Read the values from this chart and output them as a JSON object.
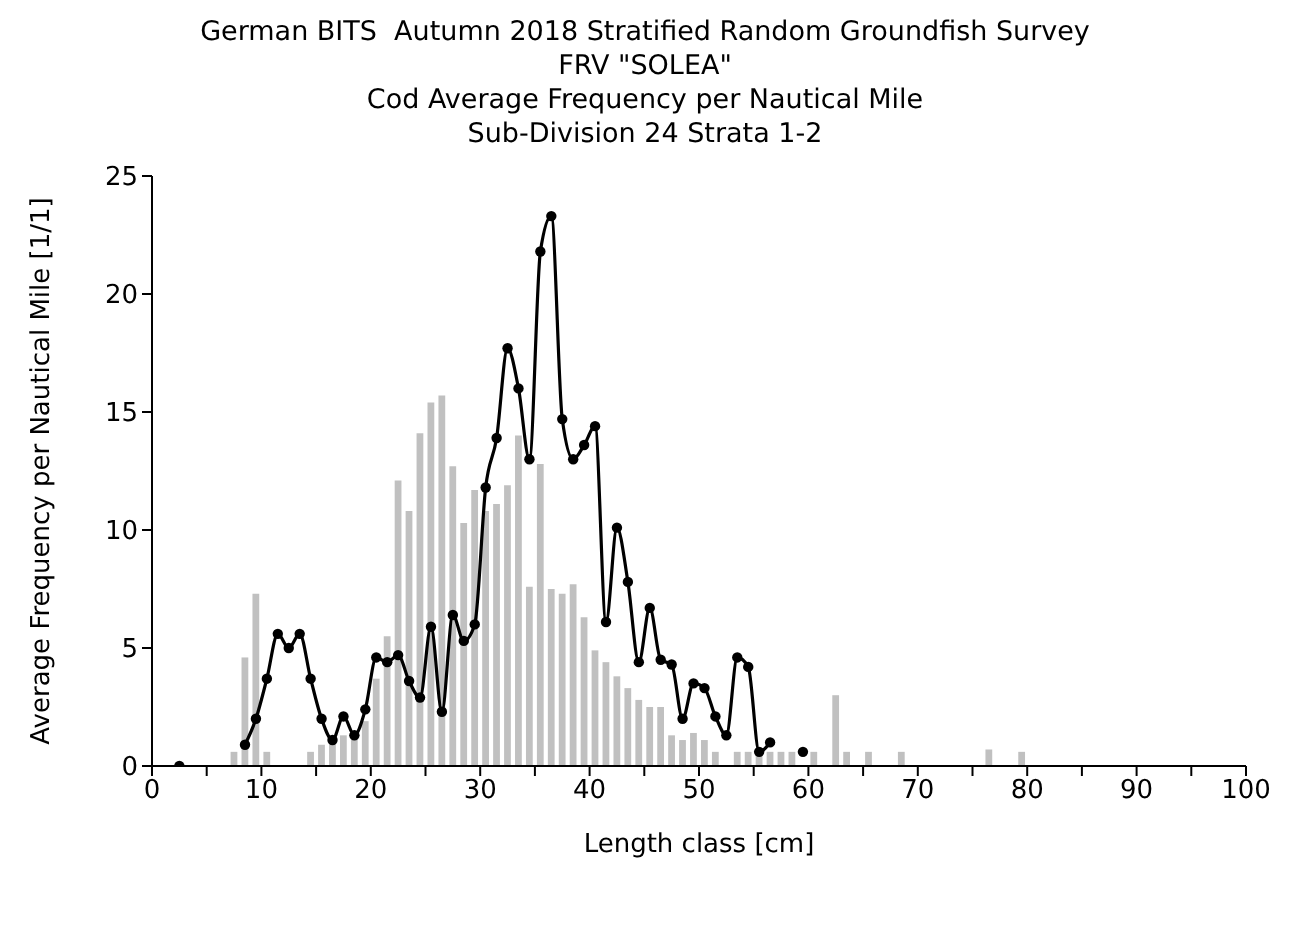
{
  "chart_data": {
    "type": "bar",
    "title": "German BITS  Autumn 2018 Stratified Random Groundfish Survey\nFRV \"SOLEA\"\nCod Average Frequency per Nautical Mile\nSub-Division 24 Strata 1-2",
    "xlabel": "Length class [cm]",
    "ylabel": "Average Frequency per Nautical Mile [1/1]",
    "xlim": [
      0,
      100
    ],
    "xticks": [
      0,
      {
        "value": 5,
        "label": null
      },
      10,
      {
        "value": 15,
        "label": null
      },
      20,
      {
        "value": 25,
        "label": null
      },
      30,
      {
        "value": 35,
        "label": null
      },
      40,
      {
        "value": 45,
        "label": null
      },
      50,
      {
        "value": 55,
        "label": null
      },
      60,
      {
        "value": 65,
        "label": null
      },
      70,
      {
        "value": 75,
        "label": null
      },
      80,
      {
        "value": 85,
        "label": null
      },
      90,
      {
        "value": 95,
        "label": null
      },
      100
    ],
    "ylim": [
      0,
      25
    ],
    "yticks": [
      0,
      5,
      10,
      15,
      20,
      25
    ],
    "marker": "circle",
    "line_style": "solid",
    "series": [
      {
        "color": "#c0c0c0",
        "x": [
          7.5,
          8.5,
          9.5,
          10.5,
          14.5,
          15.5,
          16.5,
          17.5,
          18.5,
          19.5,
          20.5,
          21.5,
          22.5,
          23.5,
          24.5,
          25.5,
          26.5,
          27.5,
          28.5,
          29.5,
          30.5,
          31.5,
          32.5,
          33.5,
          34.5,
          35.5,
          36.5,
          37.5,
          38.5,
          39.5,
          40.5,
          41.5,
          42.5,
          43.5,
          44.5,
          45.5,
          46.5,
          47.5,
          48.5,
          49.5,
          50.5,
          51.5,
          53.5,
          54.5,
          55.5,
          56.5,
          57.5,
          58.5,
          60.5,
          62.5,
          63.5,
          65.5,
          68.5,
          76.5,
          79.5
        ],
        "values": [
          0.6,
          4.6,
          7.3,
          0.6,
          0.6,
          0.9,
          1.0,
          1.3,
          1.2,
          1.9,
          3.7,
          5.5,
          12.1,
          10.8,
          14.1,
          15.4,
          15.7,
          12.7,
          10.3,
          11.7,
          10.8,
          11.1,
          11.9,
          14.0,
          7.6,
          12.8,
          7.5,
          7.3,
          7.7,
          6.3,
          4.9,
          4.4,
          3.8,
          3.3,
          2.8,
          2.5,
          2.5,
          1.3,
          1.1,
          1.4,
          1.1,
          0.6,
          0.6,
          0.6,
          0.6,
          0.6,
          0.6,
          0.6,
          0.6,
          3.0,
          0.6,
          0.6,
          0.6,
          0.7,
          0.6
        ]
      },
      {
        "type": "line",
        "color": "#000000",
        "x": [
          2.5,
          3.5,
          4.5,
          5.5,
          6.5,
          7.5,
          8.5,
          9.5,
          10.5,
          11.5,
          12.5,
          13.5,
          14.5,
          15.5,
          16.5,
          17.5,
          18.5,
          19.5,
          20.5,
          21.5,
          22.5,
          23.5,
          24.5,
          25.5,
          26.5,
          27.5,
          28.5,
          29.5,
          30.5,
          31.5,
          32.5,
          33.5,
          34.5,
          35.5,
          36.5,
          37.5,
          38.5,
          39.5,
          40.5,
          41.5,
          42.5,
          43.5,
          44.5,
          45.5,
          46.5,
          47.5,
          48.5,
          49.5,
          50.5,
          51.5,
          52.5,
          53.5,
          54.5,
          55.5,
          56.5,
          57.5,
          58.5,
          59.5
        ],
        "values": [
          0,
          null,
          null,
          null,
          null,
          null,
          0.9,
          2.0,
          3.7,
          5.6,
          5.0,
          5.6,
          3.7,
          2.0,
          1.1,
          2.1,
          1.3,
          2.4,
          4.6,
          4.4,
          4.7,
          3.6,
          2.9,
          5.9,
          2.3,
          6.4,
          5.3,
          6.0,
          11.8,
          13.9,
          17.7,
          16.0,
          13.0,
          21.8,
          23.3,
          14.7,
          13.0,
          13.6,
          14.4,
          6.1,
          10.1,
          7.8,
          4.4,
          6.7,
          4.5,
          4.3,
          2.0,
          3.5,
          3.3,
          2.1,
          1.3,
          4.6,
          4.2,
          0.6,
          1.0,
          null,
          null,
          0.6
        ]
      }
    ]
  }
}
